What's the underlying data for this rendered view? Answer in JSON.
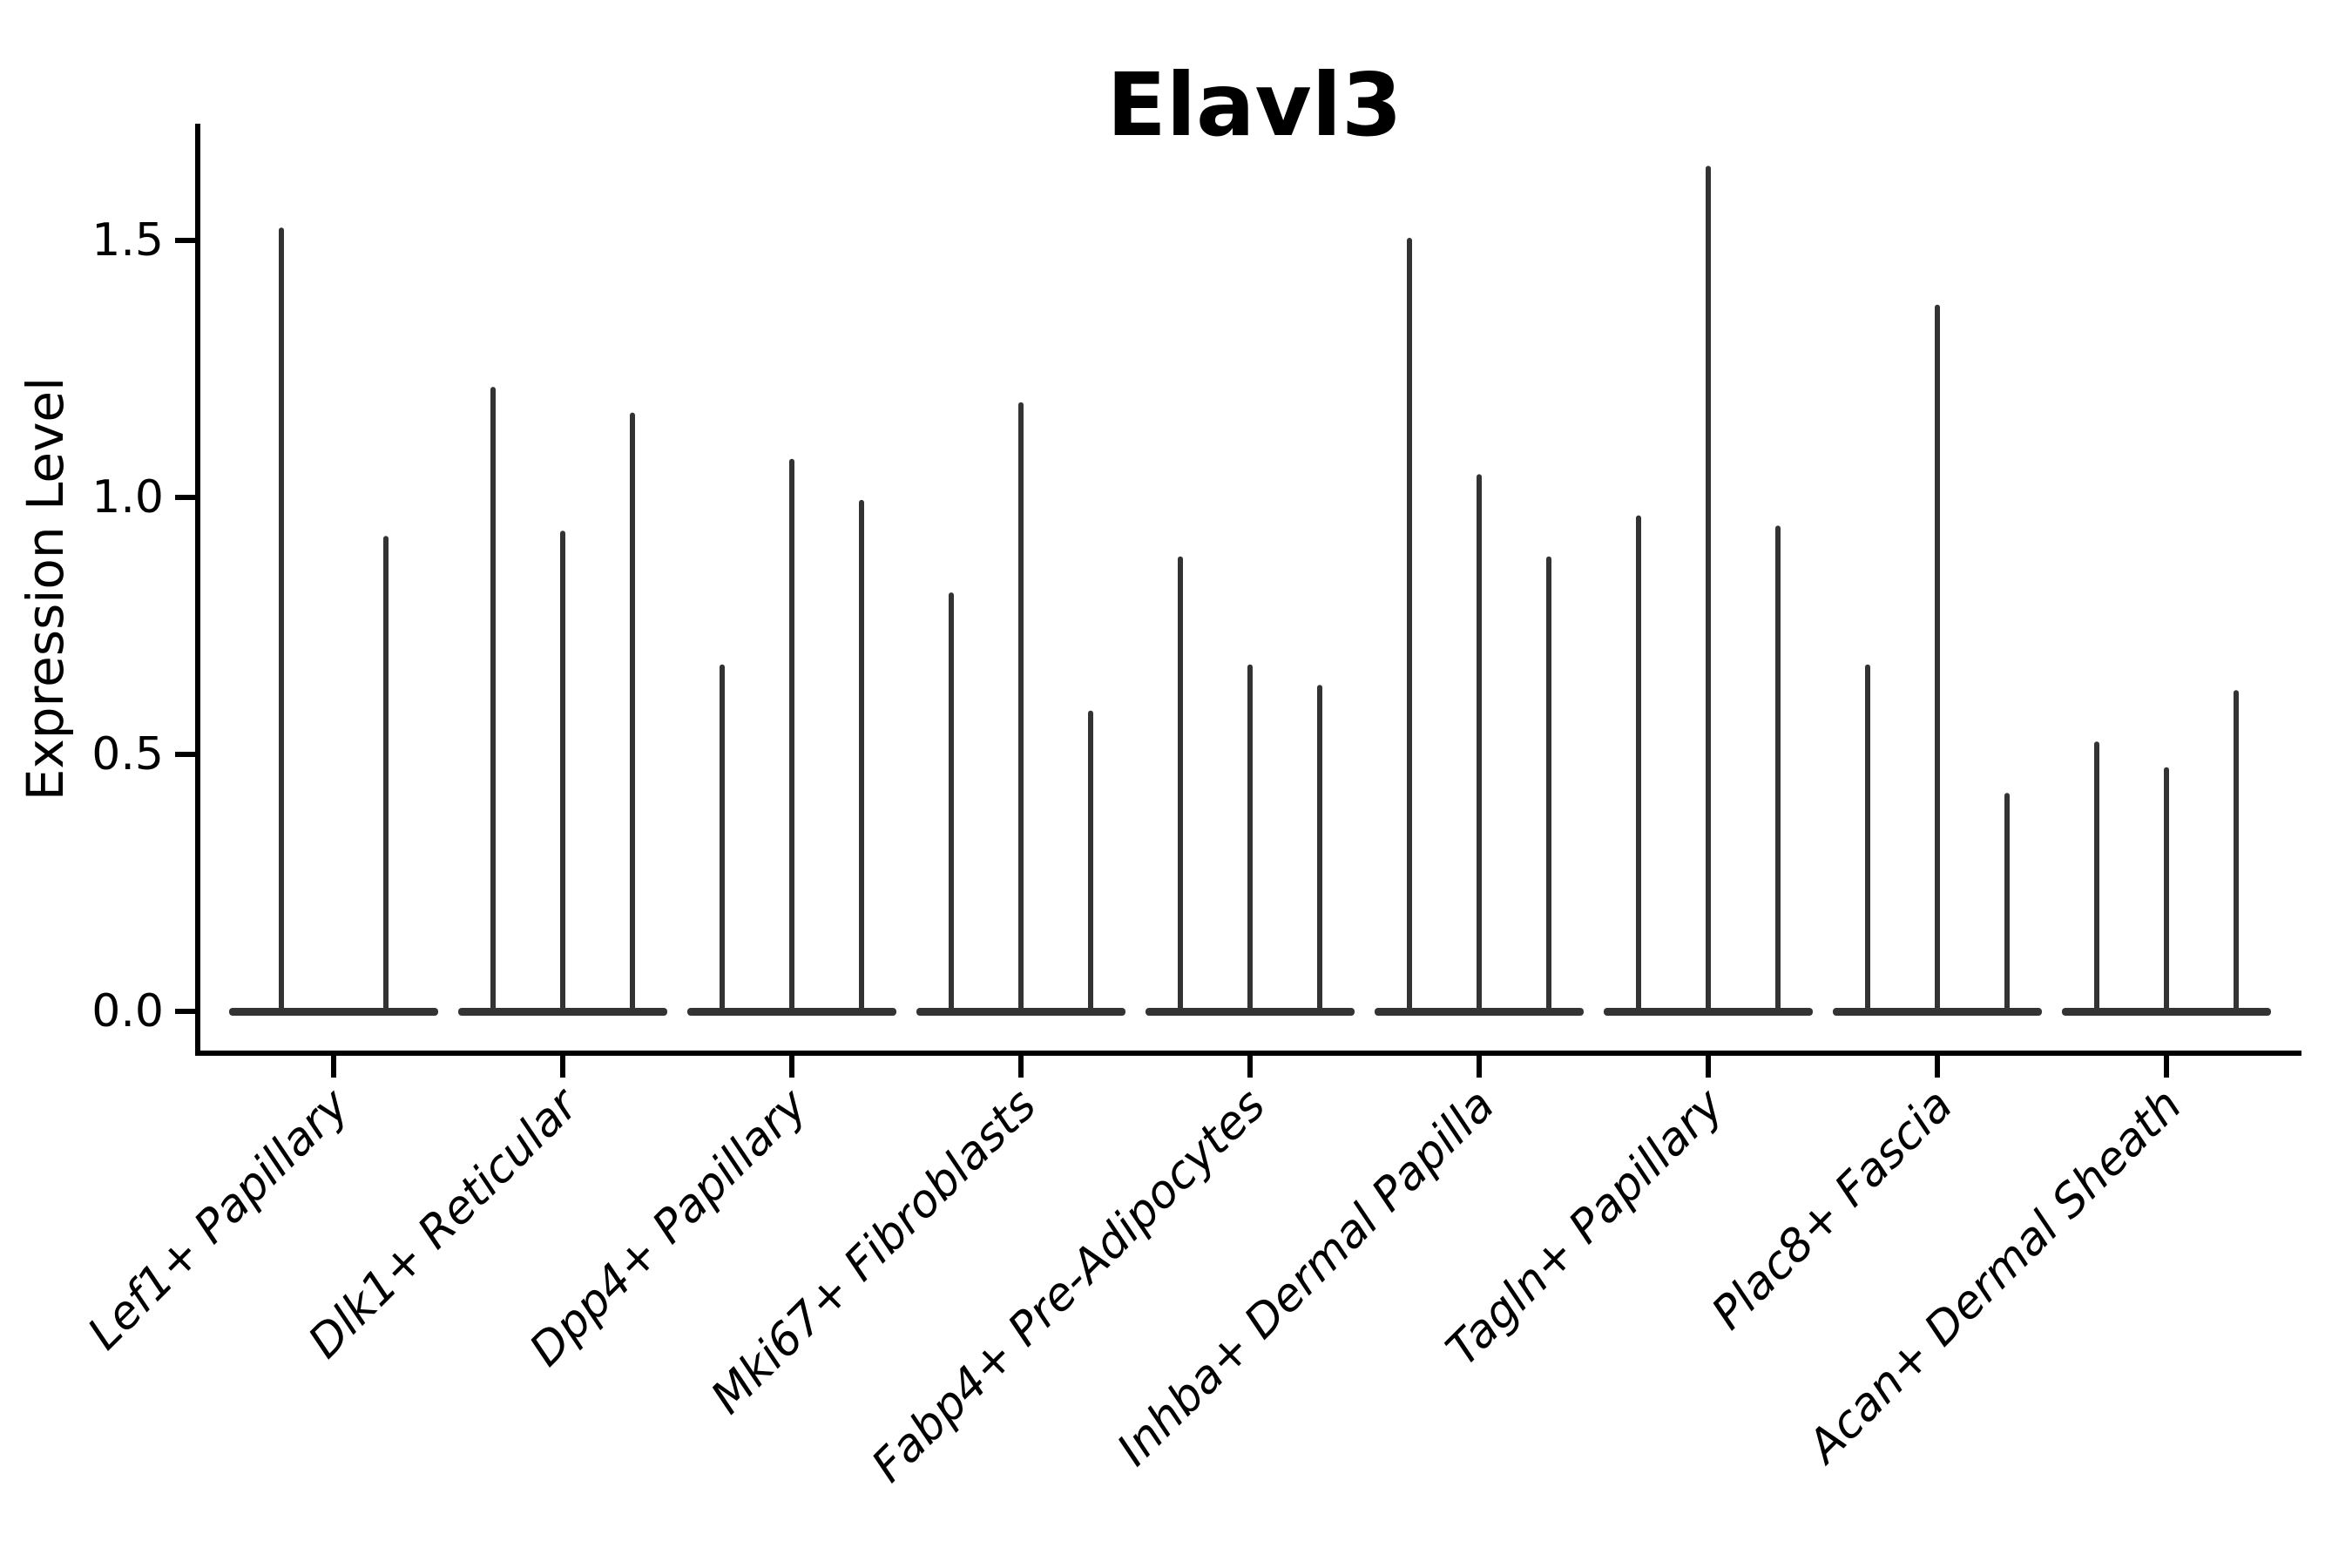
{
  "chart_data": {
    "type": "violin",
    "title": "Elavl3",
    "ylabel": "Expression Level",
    "xlabel": "",
    "grid": false,
    "legend": "none",
    "ylim": [
      -0.08,
      1.74
    ],
    "yticks": [
      0.0,
      0.5,
      1.0,
      1.5
    ],
    "ytick_labels": [
      "0.0",
      "0.5",
      "1.0",
      "1.5"
    ],
    "categories": [
      "Lef1+ Papillary",
      "Dlk1+ Reticular",
      "Dpp4+ Papillary",
      "Mki67+ Fibroblasts",
      "Fabp4+ Pre-Adipocytes",
      "Inhba+ Dermal Papilla",
      "Tagln+ Papillary",
      "Plac8+ Fascia",
      "Acan+ Dermal Sheath"
    ],
    "groups": [
      {
        "label": "Lef1+ Papillary",
        "violin_max_values": [
          1.52,
          0.92
        ]
      },
      {
        "label": "Dlk1+ Reticular",
        "violin_max_values": [
          1.21,
          0.93,
          1.16
        ]
      },
      {
        "label": "Dpp4+ Papillary",
        "violin_max_values": [
          0.67,
          1.07,
          0.99
        ]
      },
      {
        "label": "Mki67+ Fibroblasts",
        "violin_max_values": [
          0.81,
          1.18,
          0.58
        ]
      },
      {
        "label": "Fabp4+ Pre-Adipocytes",
        "violin_max_values": [
          0.88,
          0.67,
          0.63
        ]
      },
      {
        "label": "Inhba+ Dermal Papilla",
        "violin_max_values": [
          1.5,
          1.04,
          0.88
        ]
      },
      {
        "label": "Tagln+ Papillary",
        "violin_max_values": [
          0.96,
          1.64,
          0.94
        ]
      },
      {
        "label": "Plac8+ Fascia",
        "violin_max_values": [
          0.67,
          1.37,
          0.42
        ]
      },
      {
        "label": "Acan+ Dermal Sheath",
        "violin_max_values": [
          0.52,
          0.47,
          0.62
        ]
      }
    ],
    "style": {
      "spike_color": "#333333",
      "axis_color": "#000000",
      "background": "#ffffff"
    }
  }
}
